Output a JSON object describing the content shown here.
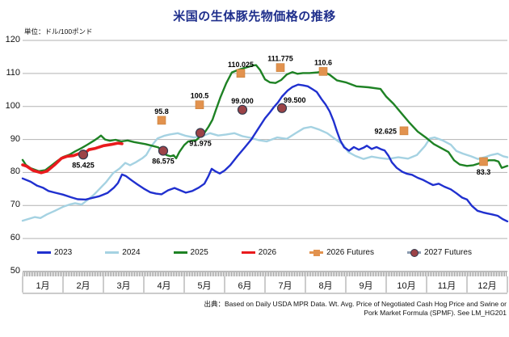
{
  "title": "米国の生体豚先物価格の推移",
  "unit": "単位：ドル/100ポンド",
  "source": {
    "line1": "出典：Based on Daily USDA MPR Data. Wt. Avg. Price of Negotiated Cash Hog Price and Swine or",
    "line2": "Pork Market Formula (SPMF). See LM_HG201"
  },
  "legend": {
    "items": [
      {
        "label": "2023",
        "line_color": "#2030cf"
      },
      {
        "label": "2024",
        "line_color": "#a5d2e2"
      },
      {
        "label": "2025",
        "line_color": "#1e8224"
      },
      {
        "label": "2026",
        "line_color": "#e91a1d"
      },
      {
        "label": "2026 Futures",
        "line_color": "#e2924e",
        "marker": {
          "shape": "square",
          "color": "#e2924e"
        }
      },
      {
        "label": "2027 Futures",
        "line_color": "#8b9bb0",
        "marker": {
          "shape": "circle",
          "color": "#9c4347"
        }
      }
    ]
  },
  "chart_data": {
    "type": "line",
    "title": "米国の生体豚先物価格の推移",
    "ylabel": "ドル/100ポンド",
    "ylim": [
      50,
      120
    ],
    "yticks": [
      120,
      110,
      100,
      90,
      80,
      70,
      60,
      50
    ],
    "x_months": [
      "1月",
      "2月",
      "3月",
      "4月",
      "5月",
      "6月",
      "7月",
      "8月",
      "9月",
      "10月",
      "11月",
      "12月"
    ],
    "grid": "horizontal",
    "legend_position": "bottom",
    "series": [
      {
        "name": "2024",
        "color": "#a5d2e2",
        "width": 2.4,
        "points": [
          [
            0,
            65.4
          ],
          [
            0.14,
            65.9
          ],
          [
            0.3,
            66.5
          ],
          [
            0.44,
            66.2
          ],
          [
            0.6,
            67.3
          ],
          [
            0.8,
            68.4
          ],
          [
            1.0,
            69.6
          ],
          [
            1.16,
            70.3
          ],
          [
            1.3,
            70.7
          ],
          [
            1.46,
            70.3
          ],
          [
            1.6,
            71.6
          ],
          [
            1.76,
            73.2
          ],
          [
            1.9,
            75.0
          ],
          [
            2.06,
            77.0
          ],
          [
            2.24,
            79.8
          ],
          [
            2.4,
            81.2
          ],
          [
            2.54,
            82.9
          ],
          [
            2.66,
            82.2
          ],
          [
            2.8,
            83.1
          ],
          [
            2.96,
            84.3
          ],
          [
            3.06,
            85.3
          ],
          [
            3.2,
            88.2
          ],
          [
            3.34,
            90.3
          ],
          [
            3.5,
            91.1
          ],
          [
            3.64,
            91.5
          ],
          [
            3.84,
            91.9
          ],
          [
            4.04,
            91.1
          ],
          [
            4.24,
            90.6
          ],
          [
            4.44,
            91.0
          ],
          [
            4.64,
            91.9
          ],
          [
            4.84,
            91.2
          ],
          [
            5.04,
            91.5
          ],
          [
            5.24,
            91.9
          ],
          [
            5.44,
            91.0
          ],
          [
            5.64,
            90.5
          ],
          [
            5.84,
            89.8
          ],
          [
            6.04,
            89.4
          ],
          [
            6.3,
            90.6
          ],
          [
            6.54,
            90.2
          ],
          [
            6.76,
            91.9
          ],
          [
            6.96,
            93.4
          ],
          [
            7.14,
            93.8
          ],
          [
            7.34,
            93.0
          ],
          [
            7.54,
            91.9
          ],
          [
            7.74,
            90.1
          ],
          [
            7.94,
            88.4
          ],
          [
            8.06,
            86.2
          ],
          [
            8.24,
            85.0
          ],
          [
            8.44,
            84.1
          ],
          [
            8.64,
            84.8
          ],
          [
            8.84,
            84.4
          ],
          [
            9.04,
            84.1
          ],
          [
            9.3,
            84.6
          ],
          [
            9.54,
            84.2
          ],
          [
            9.76,
            85.3
          ],
          [
            9.96,
            88.0
          ],
          [
            10.08,
            90.3
          ],
          [
            10.2,
            90.6
          ],
          [
            10.4,
            89.7
          ],
          [
            10.6,
            88.4
          ],
          [
            10.74,
            86.5
          ],
          [
            10.9,
            85.7
          ],
          [
            11.1,
            84.9
          ],
          [
            11.27,
            84.1
          ],
          [
            11.44,
            84.6
          ],
          [
            11.6,
            85.3
          ],
          [
            11.76,
            85.7
          ],
          [
            11.9,
            84.9
          ],
          [
            12.0,
            84.6
          ]
        ]
      },
      {
        "name": "2025",
        "color": "#1e8224",
        "width": 2.4,
        "points": [
          [
            0,
            83.8
          ],
          [
            0.08,
            82.3
          ],
          [
            0.2,
            81.3
          ],
          [
            0.4,
            80.4
          ],
          [
            0.56,
            80.7
          ],
          [
            0.7,
            82.0
          ],
          [
            0.86,
            83.5
          ],
          [
            1.0,
            84.7
          ],
          [
            1.16,
            85.4
          ],
          [
            1.3,
            86.4
          ],
          [
            1.46,
            87.4
          ],
          [
            1.6,
            88.4
          ],
          [
            1.76,
            89.6
          ],
          [
            1.88,
            90.6
          ],
          [
            1.94,
            91.2
          ],
          [
            2.04,
            90.0
          ],
          [
            2.16,
            89.6
          ],
          [
            2.3,
            89.9
          ],
          [
            2.44,
            89.4
          ],
          [
            2.6,
            89.7
          ],
          [
            2.76,
            89.2
          ],
          [
            2.9,
            88.9
          ],
          [
            3.04,
            88.6
          ],
          [
            3.2,
            88.1
          ],
          [
            3.36,
            87.6
          ],
          [
            3.46,
            86.3
          ],
          [
            3.56,
            85.3
          ],
          [
            3.66,
            84.9
          ],
          [
            3.74,
            85.2
          ],
          [
            3.8,
            84.3
          ],
          [
            3.88,
            86.2
          ],
          [
            4.0,
            88.3
          ],
          [
            4.1,
            89.4
          ],
          [
            4.3,
            89.8
          ],
          [
            4.4,
            91.0
          ],
          [
            4.5,
            92.0
          ],
          [
            4.6,
            93.8
          ],
          [
            4.7,
            96.0
          ],
          [
            4.78,
            98.8
          ],
          [
            4.9,
            102.9
          ],
          [
            5.04,
            107.0
          ],
          [
            5.18,
            110.3
          ],
          [
            5.36,
            111.2
          ],
          [
            5.56,
            111.9
          ],
          [
            5.7,
            112.4
          ],
          [
            5.78,
            112.5
          ],
          [
            5.88,
            111.0
          ],
          [
            6.0,
            108.2
          ],
          [
            6.12,
            107.3
          ],
          [
            6.26,
            107.1
          ],
          [
            6.4,
            108.0
          ],
          [
            6.54,
            109.7
          ],
          [
            6.68,
            110.4
          ],
          [
            6.8,
            109.9
          ],
          [
            6.94,
            110.1
          ],
          [
            7.1,
            110.1
          ],
          [
            7.3,
            110.3
          ],
          [
            7.44,
            110.6
          ],
          [
            7.6,
            109.6
          ],
          [
            7.78,
            107.9
          ],
          [
            8.0,
            107.3
          ],
          [
            8.26,
            106.1
          ],
          [
            8.56,
            105.8
          ],
          [
            8.86,
            105.3
          ],
          [
            9.0,
            103.0
          ],
          [
            9.18,
            100.8
          ],
          [
            9.38,
            97.9
          ],
          [
            9.58,
            95.0
          ],
          [
            9.78,
            92.4
          ],
          [
            9.98,
            90.6
          ],
          [
            10.18,
            88.6
          ],
          [
            10.36,
            87.4
          ],
          [
            10.54,
            86.2
          ],
          [
            10.68,
            83.7
          ],
          [
            10.82,
            82.4
          ],
          [
            11.0,
            82.0
          ],
          [
            11.16,
            82.2
          ],
          [
            11.34,
            82.9
          ],
          [
            11.54,
            83.7
          ],
          [
            11.68,
            83.7
          ],
          [
            11.78,
            83.3
          ],
          [
            11.86,
            81.4
          ],
          [
            12.0,
            82.0
          ]
        ]
      },
      {
        "name": "2023",
        "color": "#2030cf",
        "width": 2.4,
        "points": [
          [
            0,
            78.2
          ],
          [
            0.2,
            77.2
          ],
          [
            0.36,
            76.0
          ],
          [
            0.5,
            75.4
          ],
          [
            0.64,
            74.4
          ],
          [
            0.8,
            73.9
          ],
          [
            1.0,
            73.3
          ],
          [
            1.2,
            72.5
          ],
          [
            1.36,
            71.9
          ],
          [
            1.56,
            71.8
          ],
          [
            1.72,
            72.3
          ],
          [
            1.9,
            72.8
          ],
          [
            2.1,
            73.8
          ],
          [
            2.26,
            75.4
          ],
          [
            2.36,
            76.8
          ],
          [
            2.46,
            79.4
          ],
          [
            2.56,
            78.9
          ],
          [
            2.7,
            77.6
          ],
          [
            2.84,
            76.4
          ],
          [
            3.0,
            75.1
          ],
          [
            3.16,
            74.0
          ],
          [
            3.3,
            73.6
          ],
          [
            3.44,
            73.4
          ],
          [
            3.6,
            74.6
          ],
          [
            3.76,
            75.3
          ],
          [
            3.9,
            74.6
          ],
          [
            4.04,
            73.9
          ],
          [
            4.2,
            74.4
          ],
          [
            4.36,
            75.4
          ],
          [
            4.5,
            76.6
          ],
          [
            4.6,
            78.9
          ],
          [
            4.68,
            81.1
          ],
          [
            4.78,
            80.3
          ],
          [
            4.88,
            79.7
          ],
          [
            5.0,
            80.6
          ],
          [
            5.14,
            82.2
          ],
          [
            5.32,
            85.0
          ],
          [
            5.5,
            87.6
          ],
          [
            5.66,
            90.0
          ],
          [
            5.84,
            93.4
          ],
          [
            6.0,
            96.4
          ],
          [
            6.12,
            98.2
          ],
          [
            6.22,
            99.8
          ],
          [
            6.32,
            101.2
          ],
          [
            6.42,
            103.0
          ],
          [
            6.56,
            104.8
          ],
          [
            6.68,
            105.9
          ],
          [
            6.82,
            106.6
          ],
          [
            6.94,
            106.4
          ],
          [
            7.06,
            106.1
          ],
          [
            7.18,
            105.2
          ],
          [
            7.28,
            104.4
          ],
          [
            7.4,
            102.2
          ],
          [
            7.5,
            100.6
          ],
          [
            7.6,
            98.5
          ],
          [
            7.7,
            95.5
          ],
          [
            7.78,
            92.5
          ],
          [
            7.86,
            89.8
          ],
          [
            7.96,
            87.6
          ],
          [
            8.08,
            86.6
          ],
          [
            8.2,
            87.7
          ],
          [
            8.32,
            86.9
          ],
          [
            8.44,
            87.5
          ],
          [
            8.52,
            88.1
          ],
          [
            8.64,
            87.1
          ],
          [
            8.76,
            87.7
          ],
          [
            8.88,
            87.0
          ],
          [
            8.96,
            86.7
          ],
          [
            9.06,
            85.0
          ],
          [
            9.14,
            83.1
          ],
          [
            9.26,
            81.4
          ],
          [
            9.4,
            80.2
          ],
          [
            9.52,
            79.6
          ],
          [
            9.64,
            79.3
          ],
          [
            9.78,
            78.4
          ],
          [
            9.92,
            77.7
          ],
          [
            10.06,
            76.8
          ],
          [
            10.16,
            76.2
          ],
          [
            10.3,
            76.6
          ],
          [
            10.44,
            75.7
          ],
          [
            10.6,
            74.9
          ],
          [
            10.74,
            73.7
          ],
          [
            10.88,
            72.4
          ],
          [
            11.0,
            71.8
          ],
          [
            11.12,
            69.9
          ],
          [
            11.26,
            68.4
          ],
          [
            11.4,
            67.9
          ],
          [
            11.5,
            67.6
          ],
          [
            11.62,
            67.3
          ],
          [
            11.76,
            66.9
          ],
          [
            11.88,
            65.9
          ],
          [
            12.0,
            65.2
          ]
        ]
      },
      {
        "name": "2026",
        "color": "#e91a1d",
        "width": 3.6,
        "points": [
          [
            0,
            82.3
          ],
          [
            0.1,
            81.9
          ],
          [
            0.26,
            80.6
          ],
          [
            0.46,
            79.9
          ],
          [
            0.6,
            80.4
          ],
          [
            0.8,
            82.4
          ],
          [
            0.96,
            84.3
          ],
          [
            1.1,
            84.9
          ],
          [
            1.26,
            85.1
          ],
          [
            1.4,
            85.7
          ],
          [
            1.5,
            85.4
          ],
          [
            1.64,
            86.9
          ],
          [
            1.8,
            87.3
          ],
          [
            2.0,
            88.1
          ],
          [
            2.2,
            88.5
          ],
          [
            2.36,
            88.9
          ],
          [
            2.46,
            88.7
          ]
        ]
      }
    ],
    "markers": [
      {
        "name": "2026 Futures",
        "shape": "square",
        "color": "#e2924e",
        "stroke": "#c77f38",
        "points": [
          {
            "frac": 3.44,
            "value": 95.8,
            "label": "95.8",
            "label_pos": "above"
          },
          {
            "frac": 4.38,
            "value": 100.5,
            "label": "100.5",
            "label_pos": "above"
          },
          {
            "frac": 5.4,
            "value": 110.025,
            "label": "110.025",
            "label_pos": "above"
          },
          {
            "frac": 6.38,
            "value": 111.775,
            "label": "111.775",
            "label_pos": "above"
          },
          {
            "frac": 7.44,
            "value": 110.6,
            "label": "110.6",
            "label_pos": "above"
          },
          {
            "frac": 9.44,
            "value": 92.625,
            "label": "92.625",
            "label_pos": "left"
          },
          {
            "frac": 11.41,
            "value": 83.3,
            "label": "83.3",
            "label_pos": "below"
          }
        ]
      },
      {
        "name": "2027 Futures",
        "shape": "circle",
        "color": "#9c4347",
        "stroke": "#333a4d",
        "points": [
          {
            "frac": 1.5,
            "value": 85.425,
            "label": "85.425",
            "label_pos": "below"
          },
          {
            "frac": 3.48,
            "value": 86.575,
            "label": "86.575",
            "label_pos": "below"
          },
          {
            "frac": 4.4,
            "value": 91.975,
            "label": "91.975",
            "label_pos": "below"
          },
          {
            "frac": 5.44,
            "value": 99.0,
            "label": "99.000",
            "label_pos": "above"
          },
          {
            "frac": 6.42,
            "value": 99.5,
            "label": "99.500",
            "label_pos": "above-right"
          }
        ]
      }
    ]
  }
}
